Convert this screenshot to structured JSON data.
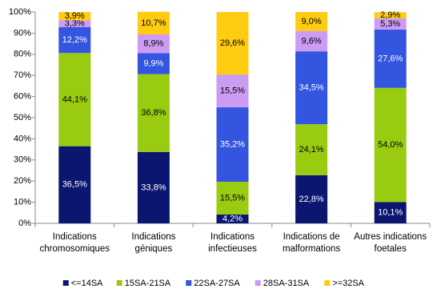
{
  "chart_data": {
    "type": "stacked_bar",
    "categories": [
      "Indications chromosomiques",
      "Indications géniques",
      "Indications infectieuses",
      "Indications de malformations",
      "Autres indications foetales"
    ],
    "series": [
      {
        "name": "<=14SA",
        "color": "#0b1670",
        "values": [
          36.5,
          33.8,
          4.2,
          22.8,
          10.1
        ],
        "value_labels": [
          "36,5%",
          "33,8%",
          "4,2%",
          "22,8%",
          "10,1%"
        ]
      },
      {
        "name": "15SA-21SA",
        "color": "#99cc11",
        "values": [
          44.1,
          36.8,
          15.5,
          24.1,
          54.0
        ],
        "value_labels": [
          "44,1%",
          "36,8%",
          "15,5%",
          "24,1%",
          "54,0%"
        ]
      },
      {
        "name": "22SA-27SA",
        "color": "#3355e0",
        "values": [
          12.2,
          9.9,
          35.2,
          34.5,
          27.6
        ],
        "value_labels": [
          "12,2%",
          "9,9%",
          "35,2%",
          "34,5%",
          "27,6%"
        ]
      },
      {
        "name": "28SA-31SA",
        "color": "#cc9cf5",
        "values": [
          3.3,
          8.9,
          15.5,
          9.6,
          5.3
        ],
        "value_labels": [
          "3,3%",
          "8,9%",
          "15,5%",
          "9,6%",
          "5,3%"
        ]
      },
      {
        "name": ">=32SA",
        "color": "#ffcc11",
        "values": [
          3.9,
          10.7,
          29.6,
          9.0,
          2.9
        ],
        "value_labels": [
          "3,9%",
          "10,7%",
          "29,6%",
          "9,0%",
          "2,9%"
        ]
      }
    ],
    "ylim": [
      0,
      100
    ],
    "yticks": [
      {
        "value": 0,
        "label": "0%"
      },
      {
        "value": 10,
        "label": "10%"
      },
      {
        "value": 20,
        "label": "20%"
      },
      {
        "value": 30,
        "label": "30%"
      },
      {
        "value": 40,
        "label": "40%"
      },
      {
        "value": 50,
        "label": "50%"
      },
      {
        "value": 60,
        "label": "60%"
      },
      {
        "value": 70,
        "label": "70%"
      },
      {
        "value": 80,
        "label": "80%"
      },
      {
        "value": 90,
        "label": "90%"
      },
      {
        "value": 100,
        "label": "100%"
      }
    ],
    "legend": "bottom"
  }
}
